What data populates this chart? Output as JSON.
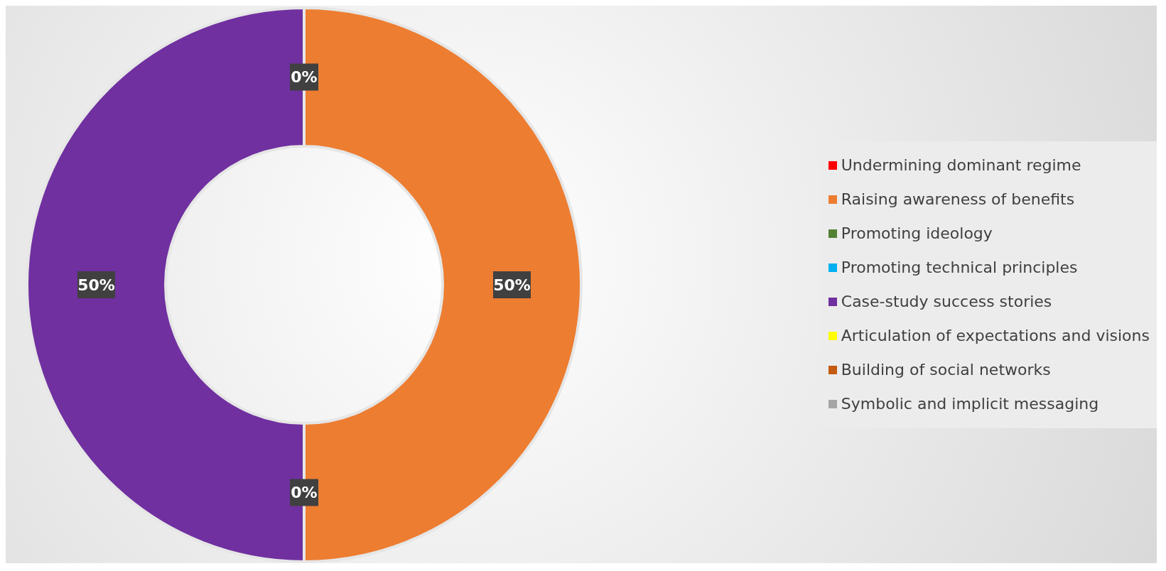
{
  "chart_data": {
    "type": "donut",
    "categories": [
      "Undermining dominant regime",
      "Raising awareness of benefits",
      "Promoting ideology",
      "Promoting technical principles",
      "Case-study success stories",
      "Articulation of expectations and visions",
      "Building of social networks",
      "Symbolic and implicit messaging"
    ],
    "values": [
      0,
      50,
      0,
      0,
      50,
      0,
      0,
      0
    ],
    "colors": [
      "#ff0000",
      "#ed7d31",
      "#548235",
      "#00b0f0",
      "#7030a0",
      "#ffff00",
      "#c55a11",
      "#a5a5a5"
    ],
    "value_labels": [
      "0%",
      "50%",
      "0%",
      null,
      "50%",
      null,
      null,
      null
    ],
    "legend": "right"
  }
}
